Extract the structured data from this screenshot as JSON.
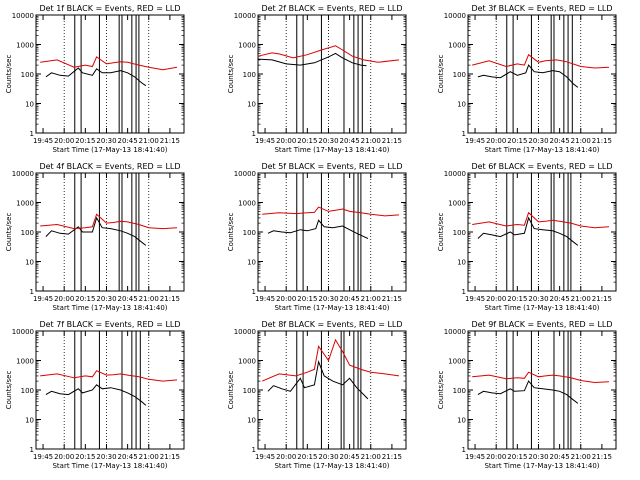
{
  "chart_data": [
    {
      "type": "line",
      "title": "Det 1f BLACK = Events, RED = LLD",
      "xlabel": "Start Time (17-May-13 18:41:40)",
      "ylabel": "Counts/sec",
      "x_ticks": [
        "19:45",
        "20:00",
        "20:15",
        "20:30",
        "20:45",
        "21:00",
        "21:15"
      ],
      "y_ticks": [
        "1",
        "10",
        "100",
        "1000",
        "10000"
      ],
      "ylim": [
        1,
        10000
      ],
      "yscale": "log",
      "xlim_min": [
        -5,
        100
      ],
      "dotted_lines_min": [
        15,
        45,
        75
      ],
      "event_lines_min": [
        22.5,
        27,
        40,
        54,
        56,
        63,
        66,
        68
      ],
      "series": [
        {
          "name": "BLACK = Events",
          "color": "#000000",
          "x": [
            2,
            6,
            12,
            18,
            25,
            28,
            35,
            38,
            42,
            48,
            55,
            60,
            65,
            70,
            73
          ],
          "values": [
            80,
            110,
            90,
            85,
            160,
            110,
            90,
            150,
            110,
            110,
            130,
            110,
            80,
            50,
            40
          ]
        },
        {
          "name": "RED = LLD",
          "color": "#dd0000",
          "x": [
            -2,
            10,
            22,
            30,
            35,
            38,
            45,
            50,
            55,
            60,
            68,
            75,
            85,
            95
          ],
          "values": [
            250,
            300,
            170,
            200,
            180,
            380,
            220,
            240,
            260,
            250,
            200,
            170,
            140,
            170
          ]
        }
      ]
    },
    {
      "type": "line",
      "title": "Det 2f BLACK = Events, RED = LLD",
      "xlabel": "Start Time (17-May-13 18:41:40)",
      "ylabel": "Counts/sec",
      "x_ticks": [
        "19:45",
        "20:00",
        "20:15",
        "20:30",
        "20:45",
        "21:00",
        "21:15"
      ],
      "y_ticks": [
        "1",
        "10",
        "100",
        "1000",
        "10000"
      ],
      "ylim": [
        1,
        10000
      ],
      "yscale": "log",
      "xlim_min": [
        -5,
        100
      ],
      "dotted_lines_min": [
        15,
        45,
        75
      ],
      "event_lines_min": [
        22.5,
        27,
        40,
        56,
        63,
        66,
        69
      ],
      "series": [
        {
          "name": "BLACK = Events",
          "color": "#000000",
          "x": [
            -5,
            5,
            15,
            25,
            35,
            45,
            50,
            55,
            62,
            68,
            72
          ],
          "values": [
            320,
            300,
            220,
            200,
            240,
            380,
            500,
            350,
            240,
            200,
            190
          ]
        },
        {
          "name": "RED = LLD",
          "color": "#dd0000",
          "x": [
            -5,
            5,
            10,
            20,
            30,
            40,
            50,
            55,
            62,
            70,
            80,
            95
          ],
          "values": [
            400,
            520,
            480,
            350,
            450,
            650,
            900,
            650,
            400,
            300,
            250,
            300
          ]
        }
      ]
    },
    {
      "type": "line",
      "title": "Det 3f BLACK = Events, RED = LLD",
      "xlabel": "Start Time (17-May-13 18:41:40)",
      "ylabel": "Counts/sec",
      "x_ticks": [
        "19:45",
        "20:00",
        "20:15",
        "20:30",
        "20:45",
        "21:00",
        "21:15"
      ],
      "y_ticks": [
        "1",
        "10",
        "100",
        "1000",
        "10000"
      ],
      "ylim": [
        1,
        10000
      ],
      "yscale": "log",
      "xlim_min": [
        -5,
        100
      ],
      "dotted_lines_min": [
        15,
        45,
        75
      ],
      "event_lines_min": [
        22.5,
        27,
        40,
        54,
        56,
        63,
        66,
        69
      ],
      "series": [
        {
          "name": "BLACK = Events",
          "color": "#000000",
          "x": [
            2,
            6,
            12,
            18,
            25,
            30,
            36,
            38,
            42,
            48,
            55,
            60,
            65,
            70,
            73
          ],
          "values": [
            80,
            90,
            80,
            75,
            120,
            90,
            110,
            200,
            120,
            110,
            130,
            120,
            80,
            45,
            35
          ]
        },
        {
          "name": "RED = LLD",
          "color": "#dd0000",
          "x": [
            -2,
            10,
            22,
            30,
            35,
            38,
            45,
            50,
            58,
            65,
            75,
            85,
            95
          ],
          "values": [
            200,
            280,
            180,
            220,
            200,
            450,
            250,
            280,
            300,
            260,
            180,
            160,
            170
          ]
        }
      ]
    },
    {
      "type": "line",
      "title": "Det 4f BLACK = Events, RED = LLD",
      "xlabel": "Start Time (17-May-13 18:41:40)",
      "ylabel": "Counts/sec",
      "x_ticks": [
        "19:45",
        "20:00",
        "20:15",
        "20:30",
        "20:45",
        "21:00",
        "21:15"
      ],
      "y_ticks": [
        "1",
        "10",
        "100",
        "1000",
        "10000"
      ],
      "ylim": [
        1,
        10000
      ],
      "yscale": "log",
      "xlim_min": [
        -5,
        100
      ],
      "dotted_lines_min": [
        15,
        45,
        75
      ],
      "event_lines_min": [
        22.5,
        27,
        40,
        54,
        56,
        63,
        66,
        68
      ],
      "series": [
        {
          "name": "BLACK = Events",
          "color": "#000000",
          "x": [
            2,
            6,
            12,
            18,
            25,
            28,
            35,
            38,
            42,
            48,
            55,
            60,
            65,
            70,
            73
          ],
          "values": [
            70,
            110,
            90,
            85,
            150,
            100,
            100,
            300,
            140,
            130,
            110,
            90,
            70,
            45,
            35
          ]
        },
        {
          "name": "RED = LLD",
          "color": "#dd0000",
          "x": [
            -2,
            10,
            22,
            30,
            35,
            38,
            45,
            50,
            55,
            60,
            68,
            75,
            85,
            95
          ],
          "values": [
            160,
            180,
            130,
            140,
            150,
            400,
            200,
            210,
            230,
            220,
            180,
            140,
            130,
            140
          ]
        }
      ]
    },
    {
      "type": "line",
      "title": "Det 5f BLACK = Events, RED = LLD",
      "xlabel": "Start Time (17-May-13 18:41:40)",
      "ylabel": "Counts/sec",
      "x_ticks": [
        "19:45",
        "20:00",
        "20:15",
        "20:30",
        "20:45",
        "21:00",
        "21:15"
      ],
      "y_ticks": [
        "1",
        "10",
        "100",
        "1000",
        "10000"
      ],
      "ylim": [
        1,
        10000
      ],
      "yscale": "log",
      "xlim_min": [
        -5,
        100
      ],
      "dotted_lines_min": [
        15,
        45,
        75
      ],
      "event_lines_min": [
        22.5,
        27,
        40,
        56,
        63,
        66,
        68
      ],
      "series": [
        {
          "name": "BLACK = Events",
          "color": "#000000",
          "x": [
            2,
            6,
            12,
            18,
            25,
            30,
            36,
            38,
            42,
            48,
            55,
            60,
            65,
            70,
            73
          ],
          "values": [
            90,
            110,
            100,
            95,
            120,
            110,
            130,
            250,
            150,
            140,
            160,
            120,
            90,
            70,
            60
          ]
        },
        {
          "name": "RED = LLD",
          "color": "#dd0000",
          "x": [
            -2,
            10,
            22,
            30,
            35,
            38,
            45,
            50,
            55,
            60,
            68,
            75,
            85,
            95
          ],
          "values": [
            400,
            450,
            420,
            450,
            460,
            700,
            500,
            550,
            600,
            500,
            450,
            400,
            350,
            380
          ]
        }
      ]
    },
    {
      "type": "line",
      "title": "Det 6f BLACK = Events, RED = LLD",
      "xlabel": "Start Time (17-May-13 18:41:40)",
      "ylabel": "Counts/sec",
      "x_ticks": [
        "19:45",
        "20:00",
        "20:15",
        "20:30",
        "20:45",
        "21:00",
        "21:15"
      ],
      "y_ticks": [
        "1",
        "10",
        "100",
        "1000",
        "10000"
      ],
      "ylim": [
        1,
        10000
      ],
      "yscale": "log",
      "xlim_min": [
        -5,
        100
      ],
      "dotted_lines_min": [
        15,
        45,
        75
      ],
      "event_lines_min": [
        22.5,
        27,
        40,
        54,
        56,
        63,
        66,
        68
      ],
      "series": [
        {
          "name": "BLACK = Events",
          "color": "#000000",
          "x": [
            2,
            6,
            12,
            18,
            25,
            28,
            35,
            38,
            42,
            48,
            55,
            60,
            65,
            70,
            73
          ],
          "values": [
            60,
            90,
            80,
            70,
            100,
            80,
            90,
            300,
            130,
            120,
            110,
            90,
            70,
            45,
            35
          ]
        },
        {
          "name": "RED = LLD",
          "color": "#dd0000",
          "x": [
            -2,
            10,
            22,
            30,
            35,
            38,
            45,
            50,
            55,
            60,
            68,
            75,
            85,
            95
          ],
          "values": [
            180,
            220,
            160,
            180,
            170,
            450,
            220,
            230,
            250,
            230,
            200,
            160,
            140,
            150
          ]
        }
      ]
    },
    {
      "type": "line",
      "title": "Det 7f BLACK = Events, RED = LLD",
      "xlabel": "Start Time (17-May-13 18:41:40)",
      "ylabel": "Counts/sec",
      "x_ticks": [
        "19:45",
        "20:00",
        "20:15",
        "20:30",
        "20:45",
        "21:00",
        "21:15"
      ],
      "y_ticks": [
        "1",
        "10",
        "100",
        "1000",
        "10000"
      ],
      "ylim": [
        1,
        10000
      ],
      "yscale": "log",
      "xlim_min": [
        -5,
        100
      ],
      "dotted_lines_min": [
        15,
        45,
        75
      ],
      "event_lines_min": [
        22.5,
        27,
        40,
        56,
        63,
        66,
        69
      ],
      "series": [
        {
          "name": "BLACK = Events",
          "color": "#000000",
          "x": [
            2,
            6,
            12,
            18,
            25,
            28,
            35,
            38,
            42,
            48,
            55,
            60,
            65,
            70,
            73
          ],
          "values": [
            70,
            90,
            75,
            70,
            110,
            80,
            100,
            150,
            110,
            120,
            100,
            80,
            60,
            40,
            30
          ]
        },
        {
          "name": "RED = LLD",
          "color": "#dd0000",
          "x": [
            -2,
            10,
            22,
            30,
            35,
            38,
            45,
            50,
            55,
            60,
            68,
            75,
            85,
            95
          ],
          "values": [
            300,
            350,
            260,
            300,
            280,
            450,
            320,
            330,
            350,
            320,
            280,
            230,
            200,
            220
          ]
        }
      ]
    },
    {
      "type": "line",
      "title": "Det 8f BLACK = Events, RED = LLD",
      "xlabel": "Start Time (17-May-13 18:41:40)",
      "ylabel": "Counts/sec",
      "x_ticks": [
        "19:45",
        "20:00",
        "20:15",
        "20:30",
        "20:45",
        "21:00",
        "21:15"
      ],
      "y_ticks": [
        "1",
        "10",
        "100",
        "1000",
        "10000"
      ],
      "ylim": [
        1,
        10000
      ],
      "yscale": "log",
      "xlim_min": [
        -5,
        100
      ],
      "dotted_lines_min": [
        15,
        45,
        75
      ],
      "event_lines_min": [
        22.5,
        27,
        40,
        54,
        56,
        63,
        66,
        68
      ],
      "series": [
        {
          "name": "BLACK = Events",
          "color": "#000000",
          "x": [
            2,
            6,
            12,
            18,
            25,
            28,
            35,
            38,
            42,
            48,
            55,
            60,
            65,
            70,
            73
          ],
          "values": [
            90,
            140,
            110,
            90,
            250,
            120,
            150,
            900,
            300,
            200,
            150,
            250,
            120,
            70,
            50
          ]
        },
        {
          "name": "RED = LLD",
          "color": "#dd0000",
          "x": [
            -2,
            10,
            22,
            30,
            35,
            38,
            45,
            50,
            55,
            60,
            68,
            75,
            85,
            95
          ],
          "values": [
            200,
            350,
            300,
            400,
            500,
            3000,
            1000,
            5000,
            2000,
            700,
            500,
            400,
            350,
            300
          ]
        }
      ]
    },
    {
      "type": "line",
      "title": "Det 9f BLACK = Events, RED = LLD",
      "xlabel": "Start Time (17-May-13 18:41:40)",
      "ylabel": "Counts/sec",
      "x_ticks": [
        "19:45",
        "20:00",
        "20:15",
        "20:30",
        "20:45",
        "21:00",
        "21:15"
      ],
      "y_ticks": [
        "1",
        "10",
        "100",
        "1000",
        "10000"
      ],
      "ylim": [
        1,
        10000
      ],
      "yscale": "log",
      "xlim_min": [
        -5,
        100
      ],
      "dotted_lines_min": [
        15,
        45,
        75
      ],
      "event_lines_min": [
        22.5,
        27,
        40,
        56,
        63,
        66,
        68
      ],
      "series": [
        {
          "name": "BLACK = Events",
          "color": "#000000",
          "x": [
            2,
            6,
            12,
            18,
            25,
            28,
            35,
            38,
            42,
            48,
            55,
            60,
            65,
            70,
            73
          ],
          "values": [
            70,
            90,
            80,
            75,
            110,
            90,
            95,
            200,
            120,
            110,
            100,
            90,
            70,
            45,
            35
          ]
        },
        {
          "name": "RED = LLD",
          "color": "#dd0000",
          "x": [
            -2,
            10,
            22,
            30,
            35,
            38,
            45,
            50,
            55,
            60,
            68,
            75,
            85,
            95
          ],
          "values": [
            280,
            320,
            240,
            260,
            250,
            400,
            280,
            300,
            320,
            300,
            260,
            210,
            180,
            190
          ]
        }
      ]
    }
  ]
}
